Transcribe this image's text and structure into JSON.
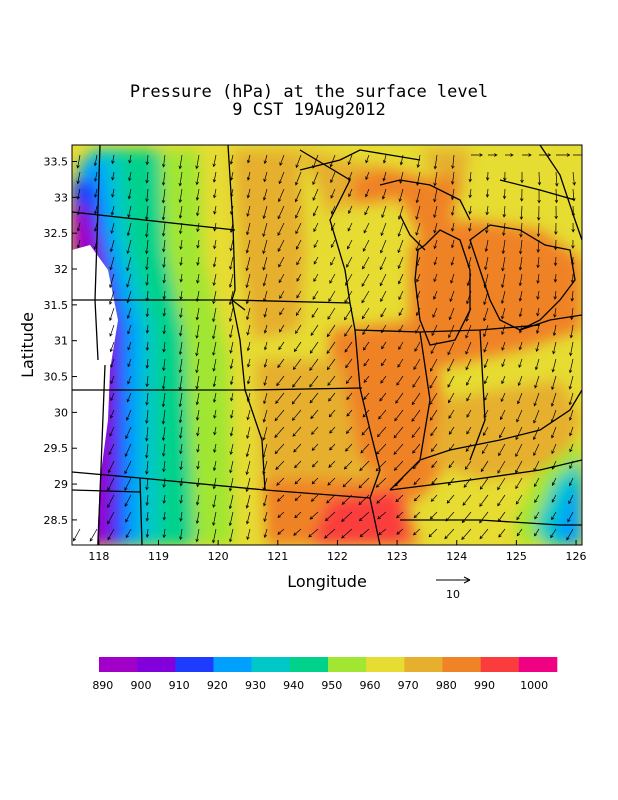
{
  "title": "Pressure (hPa) at the surface level",
  "subtitle": "9 CST 19Aug2012",
  "chart_data": {
    "type": "heatmap",
    "xlabel": "Longitude",
    "ylabel": "Latitude",
    "x_ticks": [
      "118",
      "119",
      "120",
      "121",
      "122",
      "123",
      "124",
      "125",
      "126"
    ],
    "y_ticks": [
      "28.5",
      "29",
      "29.5",
      "30",
      "30.5",
      "31",
      "31.5",
      "32",
      "32.5",
      "33",
      "33.5"
    ],
    "xlim": [
      117.55,
      126.1
    ],
    "ylim": [
      28.15,
      33.73
    ],
    "vector_reference": {
      "label": "10",
      "magnitude": 10
    },
    "legend": {
      "placement": "bottom",
      "labels": [
        "890",
        "900",
        "910",
        "920",
        "930",
        "940",
        "950",
        "960",
        "970",
        "980",
        "990",
        "1000"
      ],
      "colors": [
        "#a000c8",
        "#8200dc",
        "#1e3cff",
        "#00a0ff",
        "#00c8c8",
        "#00d28c",
        "#a0e632",
        "#e6dc32",
        "#e6af2d",
        "#f08228",
        "#fa3c3c",
        "#f00082"
      ]
    }
  }
}
